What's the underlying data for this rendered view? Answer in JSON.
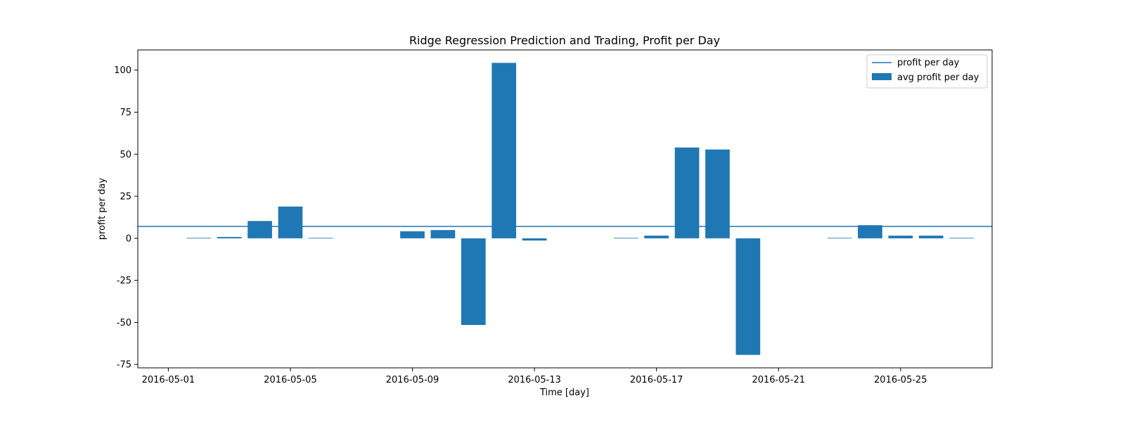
{
  "chart_data": {
    "type": "bar",
    "title": "Ridge Regression Prediction and Trading, Profit per Day",
    "xlabel": "Time [day]",
    "ylabel": "profit per day",
    "bar_color": "#1f77b4",
    "line_color": "#1f77b4",
    "x_range": [
      "2016-04-30",
      "2016-05-28"
    ],
    "ylim": [
      -77,
      112
    ],
    "x_ticks": [
      "2016-05-01",
      "2016-05-05",
      "2016-05-09",
      "2016-05-13",
      "2016-05-17",
      "2016-05-21",
      "2016-05-25"
    ],
    "y_ticks": [
      -75,
      -50,
      -25,
      0,
      25,
      50,
      75,
      100
    ],
    "grid": false,
    "legend_position": "upper right",
    "series": [
      {
        "name": "avg profit per day",
        "kind": "bar",
        "x": [
          "2016-05-02",
          "2016-05-03",
          "2016-05-04",
          "2016-05-05",
          "2016-05-06",
          "2016-05-09",
          "2016-05-10",
          "2016-05-11",
          "2016-05-12",
          "2016-05-13",
          "2016-05-16",
          "2016-05-17",
          "2016-05-18",
          "2016-05-19",
          "2016-05-20",
          "2016-05-23",
          "2016-05-24",
          "2016-05-25",
          "2016-05-26",
          "2016-05-27"
        ],
        "values": [
          0.3,
          0.8,
          10.3,
          18.9,
          0.3,
          4.2,
          4.9,
          -51.5,
          104.3,
          -1.3,
          0.3,
          1.6,
          54.0,
          52.8,
          -69.3,
          0.3,
          7.8,
          1.6,
          1.6,
          0.3
        ]
      },
      {
        "name": "profit per day",
        "kind": "hline",
        "value": 7.1
      }
    ]
  }
}
